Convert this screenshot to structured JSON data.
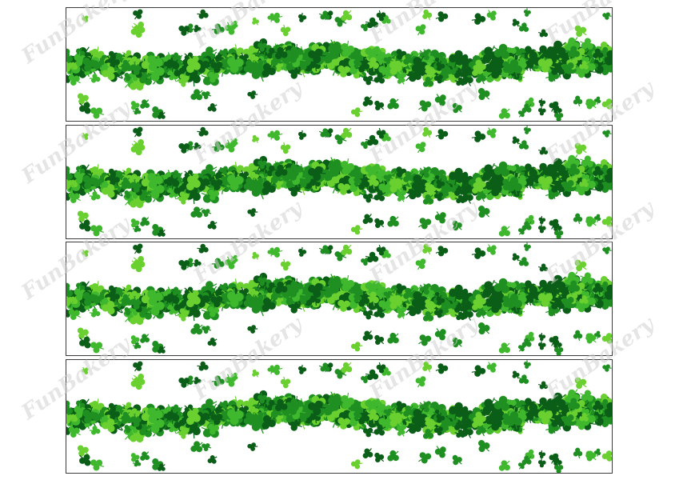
{
  "image": {
    "subject": "shamrock-border-strips",
    "strip_count": 4,
    "watermark": "FunBakery",
    "colors": {
      "background": "#ffffff",
      "strip_border": "#3a3a3a",
      "shamrock_dark": "#0b5e17",
      "shamrock_mid": "#1f8f22",
      "shamrock_light": "#3fb82e",
      "shamrock_bright": "#6ad02f",
      "watermark": "#cfcfcf"
    }
  }
}
